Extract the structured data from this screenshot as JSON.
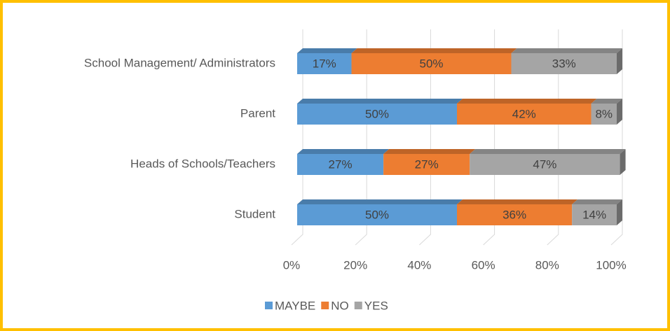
{
  "chart_data": {
    "type": "stacked-barh",
    "categories": [
      "School Management/ Administrators",
      "Parent",
      "Heads of Schools/Teachers",
      "Student"
    ],
    "series": [
      {
        "name": "MAYBE",
        "color": "#5b9bd5",
        "values": [
          17,
          50,
          27,
          50
        ],
        "value_labels": [
          "17%",
          "50%",
          "27%",
          "50%"
        ]
      },
      {
        "name": "NO",
        "color": "#ed7d31",
        "values": [
          50,
          42,
          27,
          36
        ],
        "value_labels": [
          "50%",
          "42%",
          "27%",
          "36%"
        ]
      },
      {
        "name": "YES",
        "color": "#a5a5a5",
        "values": [
          33,
          8,
          47,
          14
        ],
        "value_labels": [
          "33%",
          "8%",
          "47%",
          "14%"
        ]
      }
    ],
    "xlim": [
      0,
      100
    ],
    "xticks": [
      {
        "value": 0,
        "label": "0%"
      },
      {
        "value": 20,
        "label": "20%"
      },
      {
        "value": 40,
        "label": "40%"
      },
      {
        "value": 60,
        "label": "60%"
      },
      {
        "value": 80,
        "label": "80%"
      },
      {
        "value": 100,
        "label": "100%"
      }
    ],
    "grid": true,
    "legend": "bottom"
  }
}
